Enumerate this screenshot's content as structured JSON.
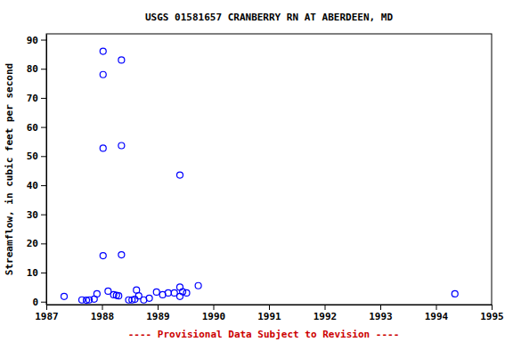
{
  "chart_data": {
    "type": "scatter",
    "title": "USGS 01581657 CRANBERRY RN AT ABERDEEN, MD",
    "y_label": "Streamflow, in cubic feet per second",
    "annotations": [
      "---- Provisional Data Subject to Revision ----"
    ],
    "x": [
      1987.32,
      1987.64,
      1987.72,
      1987.77,
      1987.86,
      1987.91,
      1988.02,
      1988.02,
      1988.02,
      1988.02,
      1988.11,
      1988.21,
      1988.26,
      1988.3,
      1988.35,
      1988.35,
      1988.35,
      1988.48,
      1988.54,
      1988.59,
      1988.62,
      1988.66,
      1988.75,
      1988.85,
      1988.98,
      1989.09,
      1989.19,
      1989.3,
      1989.4,
      1989.4,
      1989.4,
      1989.45,
      1989.52,
      1989.73,
      1994.34
    ],
    "values": [
      1.8,
      0.6,
      0.5,
      0.6,
      0.9,
      2.7,
      86,
      78,
      52.7,
      15.8,
      3.6,
      2.4,
      2.2,
      2.0,
      83,
      53.6,
      16.1,
      0.6,
      0.6,
      0.8,
      4.0,
      2.0,
      0.6,
      1.2,
      3.3,
      2.4,
      3.0,
      3.0,
      5.0,
      43.5,
      1.8,
      3.4,
      3.0,
      5.5,
      2.7
    ],
    "color": "#0000ff",
    "marker": "circle",
    "xlim": [
      1987,
      1995
    ],
    "xticks": [
      1987,
      1988,
      1989,
      1990,
      1991,
      1992,
      1993,
      1994,
      1995
    ],
    "ylim": [
      -1,
      92
    ],
    "yticks": [
      0,
      10,
      20,
      30,
      40,
      50,
      60,
      70,
      80,
      90
    ],
    "grid": false
  }
}
